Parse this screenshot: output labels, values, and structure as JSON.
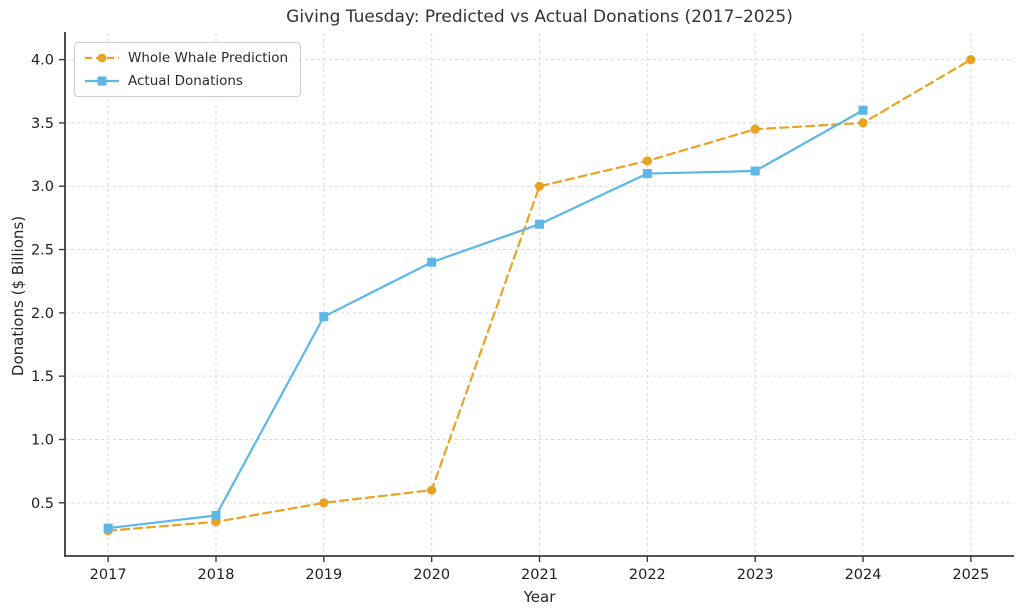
{
  "chart_data": {
    "type": "line",
    "title": "Giving Tuesday: Predicted vs Actual Donations (2017–2025)",
    "xlabel": "Year",
    "ylabel": "Donations ($ Billions)",
    "categories": [
      2017,
      2018,
      2019,
      2020,
      2021,
      2022,
      2023,
      2024,
      2025
    ],
    "series": [
      {
        "name": "Whole Whale Prediction",
        "color": "#EAA221",
        "line_style": "dashed",
        "marker": "circle",
        "values": [
          0.28,
          0.35,
          0.5,
          0.6,
          3.0,
          3.2,
          3.45,
          3.5,
          4.0
        ]
      },
      {
        "name": "Actual Donations",
        "color": "#5CB7E8",
        "line_style": "solid",
        "marker": "square",
        "values": [
          0.3,
          0.4,
          1.97,
          2.4,
          2.7,
          3.1,
          3.12,
          3.6,
          null
        ]
      }
    ],
    "yticks": [
      0.5,
      1.0,
      1.5,
      2.0,
      2.5,
      3.0,
      3.5,
      4.0
    ],
    "ylim": [
      0.08,
      4.21
    ],
    "xlim": [
      2016.6,
      2025.4
    ],
    "grid": true,
    "grid_style": "dashed",
    "legend_position": "upper-left",
    "colors": {
      "grid": "#d9d9d9",
      "spine": "#3b3b3b",
      "tick_label": "#1f1f1f",
      "title": "#333333"
    }
  }
}
